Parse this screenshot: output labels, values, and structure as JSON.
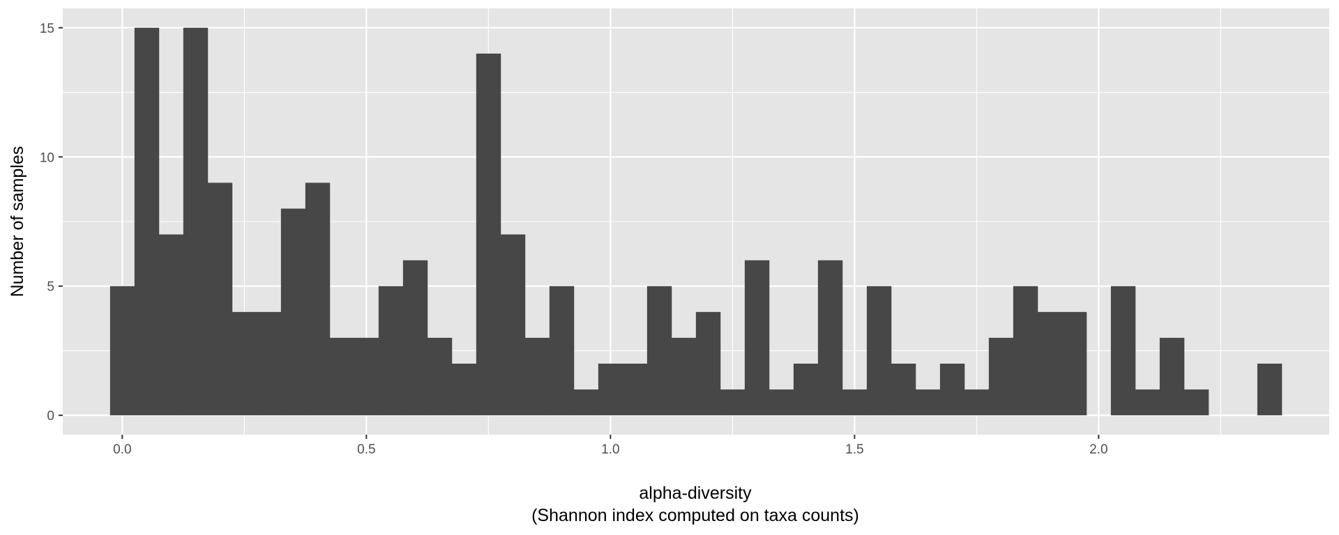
{
  "chart_data": {
    "type": "bar",
    "subtype": "histogram",
    "title": "",
    "xlabel": "alpha-diversity",
    "xlabel_sub": "(Shannon index computed on taxa counts)",
    "ylabel": "Number of samples",
    "bin_width": 0.05,
    "bin_centers": [
      0.0,
      0.05,
      0.1,
      0.15,
      0.2,
      0.25,
      0.3,
      0.35,
      0.4,
      0.45,
      0.5,
      0.55,
      0.6,
      0.65,
      0.7,
      0.75,
      0.8,
      0.85,
      0.9,
      0.95,
      1.0,
      1.05,
      1.1,
      1.15,
      1.2,
      1.25,
      1.3,
      1.35,
      1.4,
      1.45,
      1.5,
      1.55,
      1.6,
      1.65,
      1.7,
      1.75,
      1.8,
      1.85,
      1.9,
      1.95,
      2.0,
      2.05,
      2.1,
      2.15,
      2.2,
      2.25,
      2.3,
      2.35
    ],
    "values": [
      5,
      15,
      7,
      15,
      9,
      4,
      4,
      8,
      9,
      3,
      3,
      5,
      6,
      3,
      2,
      14,
      7,
      3,
      5,
      1,
      2,
      2,
      5,
      3,
      4,
      1,
      6,
      1,
      2,
      6,
      1,
      5,
      2,
      1,
      2,
      1,
      3,
      5,
      4,
      4,
      0,
      5,
      1,
      3,
      1,
      0,
      0,
      2
    ],
    "xlim": [
      -0.1219,
      2.4723
    ],
    "ylim": [
      -0.75,
      15.75
    ],
    "x_ticks": [
      "0.0",
      "0.5",
      "1.0",
      "1.5",
      "2.0"
    ],
    "x_tick_values": [
      0,
      0.5,
      1.0,
      1.5,
      2.0
    ],
    "y_ticks": [
      "0",
      "5",
      "10",
      "15"
    ],
    "y_tick_values": [
      0,
      5,
      10,
      15
    ],
    "grid": true,
    "legend": "none",
    "colors": {
      "panel_background": "#e5e5e5",
      "grid_major": "#ffffff",
      "bar_fill": "#474747",
      "tick_text": "#4d4d4d"
    }
  }
}
